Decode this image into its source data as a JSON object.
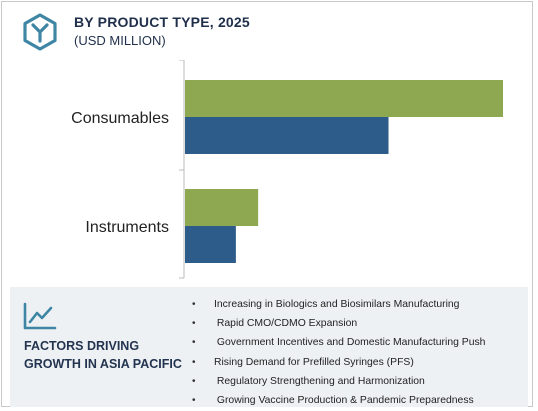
{
  "header": {
    "title": "BY PRODUCT TYPE, 2025",
    "subtitle": "(USD MILLION)",
    "icon": "hexagon-logo-icon"
  },
  "colors": {
    "series_green": "#8ea852",
    "series_blue": "#2e5c8a",
    "axis": "#bbbbbb",
    "icon_teal": "#3f86a5"
  },
  "chart_data": {
    "type": "bar",
    "orientation": "horizontal",
    "categories": [
      "Consumables",
      "Instruments"
    ],
    "series": [
      {
        "values": [
          100,
          23
        ]
      },
      {
        "values": [
          64,
          16
        ]
      }
    ],
    "value_axis_labels_shown": false,
    "grid": false,
    "legend": "none"
  },
  "footer": {
    "icon": "trend-line-icon",
    "title": "FACTORS DRIVING\nGROWTH  IN ASIA PACIFIC",
    "bullet_char": "•",
    "factors": [
      "Increasing in Biologics and Biosimilars Manufacturing",
      " Rapid CMO/CDMO Expansion",
      "  Government Incentives and Domestic Manufacturing Push",
      "Rising Demand for Prefilled Syringes (PFS)",
      " Regulatory Strengthening and Harmonization",
      " Growing Vaccine Production & Pandemic Preparedness"
    ]
  }
}
